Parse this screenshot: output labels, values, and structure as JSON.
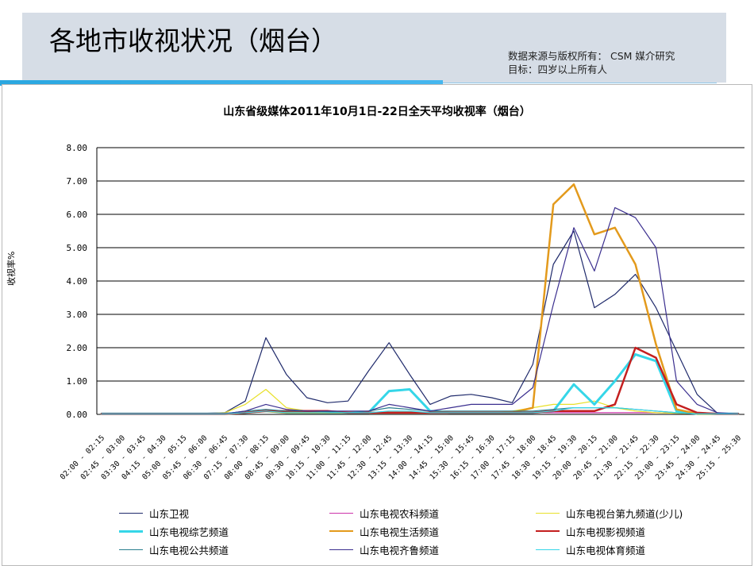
{
  "header": {
    "title": "各地市收视状况（烟台）",
    "source_line1": "数据来源与版权所有： CSM 媒介研究",
    "source_line2": "目标：四岁以上所有人"
  },
  "chart_data": {
    "type": "line",
    "title": "山东省级媒体2011年10月1日-22日全天平均收视率（烟台）",
    "xlabel": "",
    "ylabel": "收视率%",
    "ylim": [
      0,
      8
    ],
    "yticks": [
      "0.00",
      "1.00",
      "2.00",
      "3.00",
      "4.00",
      "5.00",
      "6.00",
      "7.00",
      "8.00"
    ],
    "grid": "horizontal",
    "legend_position": "bottom",
    "categories": [
      "02:00 - 02:15",
      "02:45 - 03:00",
      "03:30 - 03:45",
      "04:15 - 04:30",
      "05:00 - 05:15",
      "05:45 - 06:00",
      "06:30 - 06:45",
      "07:15 - 07:30",
      "08:00 - 08:15",
      "08:45 - 09:00",
      "09:30 - 09:45",
      "10:15 - 10:30",
      "11:00 - 11:15",
      "11:45 - 12:00",
      "12:30 - 12:45",
      "13:15 - 13:30",
      "14:00 - 14:15",
      "14:45 - 15:00",
      "15:30 - 15:45",
      "16:15 - 16:30",
      "17:00 - 17:15",
      "17:45 - 18:00",
      "18:30 - 18:45",
      "19:15 - 19:30",
      "20:00 - 20:15",
      "20:45 - 21:00",
      "21:30 - 21:45",
      "22:15 - 22:30",
      "23:00 - 23:15",
      "23:45 - 24:00",
      "24:30 - 24:45",
      "25:15 - 25:30"
    ],
    "series": [
      {
        "name": "山东卫视",
        "color": "#1f2a6b",
        "width": 1.2,
        "values": [
          0.02,
          0.02,
          0.02,
          0.02,
          0.02,
          0.03,
          0.05,
          0.4,
          2.3,
          1.2,
          0.5,
          0.35,
          0.4,
          1.3,
          2.15,
          1.2,
          0.3,
          0.55,
          0.6,
          0.5,
          0.35,
          1.5,
          4.5,
          5.5,
          3.2,
          3.6,
          4.2,
          3.2,
          1.9,
          0.6,
          0.03,
          0.02
        ]
      },
      {
        "name": "山东电视农科频道",
        "color": "#cc33aa",
        "width": 1.2,
        "values": [
          0.02,
          0.02,
          0.02,
          0.02,
          0.02,
          0.02,
          0.03,
          0.05,
          0.1,
          0.08,
          0.05,
          0.05,
          0.05,
          0.05,
          0.05,
          0.05,
          0.05,
          0.05,
          0.05,
          0.05,
          0.05,
          0.05,
          0.05,
          0.05,
          0.05,
          0.05,
          0.05,
          0.05,
          0.03,
          0.02,
          0.02,
          0.02
        ]
      },
      {
        "name": "山东电视台第九频道(少儿)",
        "color": "#e8e02a",
        "width": 1.2,
        "values": [
          0.02,
          0.02,
          0.02,
          0.02,
          0.02,
          0.02,
          0.05,
          0.3,
          0.75,
          0.2,
          0.1,
          0.1,
          0.05,
          0.05,
          0.05,
          0.05,
          0.05,
          0.05,
          0.05,
          0.05,
          0.1,
          0.2,
          0.3,
          0.3,
          0.4,
          0.2,
          0.1,
          0.05,
          0.03,
          0.02,
          0.02,
          0.02
        ]
      },
      {
        "name": "山东电视综艺频道",
        "color": "#35d6e8",
        "width": 3,
        "values": [
          0.02,
          0.02,
          0.02,
          0.02,
          0.02,
          0.02,
          0.02,
          0.05,
          0.1,
          0.05,
          0.05,
          0.05,
          0.05,
          0.05,
          0.7,
          0.75,
          0.1,
          0.05,
          0.05,
          0.05,
          0.05,
          0.05,
          0.1,
          0.9,
          0.3,
          1.0,
          1.8,
          1.6,
          0.1,
          0.02,
          0.02,
          0.02
        ]
      },
      {
        "name": "山东电视生活频道",
        "color": "#e39a1c",
        "width": 2.5,
        "values": [
          0.02,
          0.02,
          0.02,
          0.02,
          0.02,
          0.02,
          0.02,
          0.05,
          0.1,
          0.05,
          0.05,
          0.05,
          0.05,
          0.05,
          0.05,
          0.05,
          0.05,
          0.05,
          0.05,
          0.05,
          0.05,
          0.2,
          6.3,
          6.9,
          5.4,
          5.6,
          4.5,
          2.1,
          0.15,
          0.02,
          0.02,
          0.02
        ]
      },
      {
        "name": "山东电视影视频道",
        "color": "#c41f1f",
        "width": 2.5,
        "values": [
          0.02,
          0.02,
          0.02,
          0.02,
          0.02,
          0.02,
          0.02,
          0.05,
          0.1,
          0.1,
          0.1,
          0.1,
          0.05,
          0.05,
          0.05,
          0.05,
          0.05,
          0.05,
          0.05,
          0.05,
          0.05,
          0.05,
          0.1,
          0.1,
          0.1,
          0.3,
          2.0,
          1.7,
          0.3,
          0.05,
          0.02,
          0.02
        ]
      },
      {
        "name": "山东电视公共频道",
        "color": "#2a7f8f",
        "width": 1.2,
        "values": [
          0.02,
          0.02,
          0.02,
          0.02,
          0.02,
          0.02,
          0.02,
          0.1,
          0.15,
          0.1,
          0.1,
          0.08,
          0.05,
          0.1,
          0.2,
          0.15,
          0.1,
          0.1,
          0.1,
          0.1,
          0.1,
          0.1,
          0.15,
          0.2,
          0.2,
          0.2,
          0.15,
          0.1,
          0.05,
          0.02,
          0.02,
          0.02
        ]
      },
      {
        "name": "山东电视齐鲁频道",
        "color": "#3b2f8f",
        "width": 1.2,
        "values": [
          0.02,
          0.02,
          0.02,
          0.02,
          0.02,
          0.02,
          0.02,
          0.1,
          0.3,
          0.15,
          0.1,
          0.1,
          0.1,
          0.1,
          0.3,
          0.2,
          0.1,
          0.2,
          0.3,
          0.3,
          0.3,
          0.8,
          3.3,
          5.6,
          4.3,
          6.2,
          5.9,
          5.0,
          1.0,
          0.3,
          0.05,
          0.02
        ]
      },
      {
        "name": "山东电视体育频道",
        "color": "#35d6e8",
        "width": 1.2,
        "values": [
          0.02,
          0.02,
          0.02,
          0.02,
          0.02,
          0.02,
          0.02,
          0.05,
          0.1,
          0.05,
          0.05,
          0.05,
          0.05,
          0.05,
          0.1,
          0.1,
          0.05,
          0.05,
          0.05,
          0.05,
          0.05,
          0.05,
          0.1,
          0.2,
          0.2,
          0.2,
          0.15,
          0.1,
          0.05,
          0.02,
          0.02,
          0.02
        ]
      }
    ]
  }
}
